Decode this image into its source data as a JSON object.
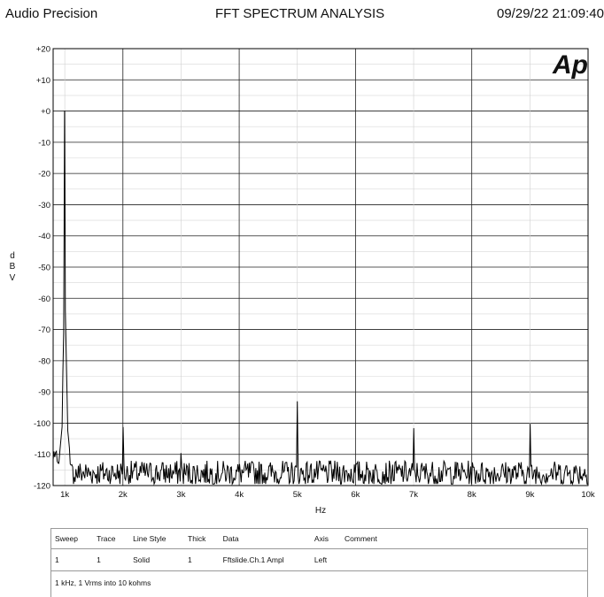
{
  "header": {
    "left": "Audio Precision",
    "title": "FFT SPECTRUM ANALYSIS",
    "timestamp": "09/29/22 21:09:40"
  },
  "logo": {
    "text": "Ap"
  },
  "chart_data": {
    "type": "line",
    "title": "FFT SPECTRUM ANALYSIS",
    "xlabel": "Hz",
    "ylabel": "d B V",
    "xlim": [
      800,
      10000
    ],
    "ylim": [
      -120,
      20
    ],
    "x_ticks": [
      {
        "v": 1000,
        "label": "1k"
      },
      {
        "v": 2000,
        "label": "2k"
      },
      {
        "v": 3000,
        "label": "3k"
      },
      {
        "v": 4000,
        "label": "4k"
      },
      {
        "v": 5000,
        "label": "5k"
      },
      {
        "v": 6000,
        "label": "6k"
      },
      {
        "v": 7000,
        "label": "7k"
      },
      {
        "v": 8000,
        "label": "8k"
      },
      {
        "v": 9000,
        "label": "9k"
      },
      {
        "v": 10000,
        "label": "10k"
      }
    ],
    "y_ticks": [
      "+20",
      "+10",
      "+0",
      "-10",
      "-20",
      "-30",
      "-40",
      "-50",
      "-60",
      "-70",
      "-80",
      "-90",
      "-100",
      "-110",
      "-120"
    ],
    "grid": true,
    "noise_floor_dB": -116,
    "series": [
      {
        "color": "#000000",
        "peaks": [
          {
            "x": 1000,
            "y": 0
          },
          {
            "x": 2000,
            "y": -106
          },
          {
            "x": 3000,
            "y": -112
          },
          {
            "x": 5000,
            "y": -93
          },
          {
            "x": 7000,
            "y": -104
          },
          {
            "x": 9000,
            "y": -105
          }
        ]
      }
    ]
  },
  "legend_table": {
    "headers": [
      "Sweep",
      "Trace",
      "Line Style",
      "Thick",
      "Data",
      "Axis",
      "Comment"
    ],
    "rows": [
      [
        "1",
        "1",
        "Solid",
        "1",
        "Fftslide.Ch.1 Ampl",
        "Left",
        ""
      ]
    ],
    "comment": "1 kHz, 1 Vrms into 10 kohms"
  }
}
